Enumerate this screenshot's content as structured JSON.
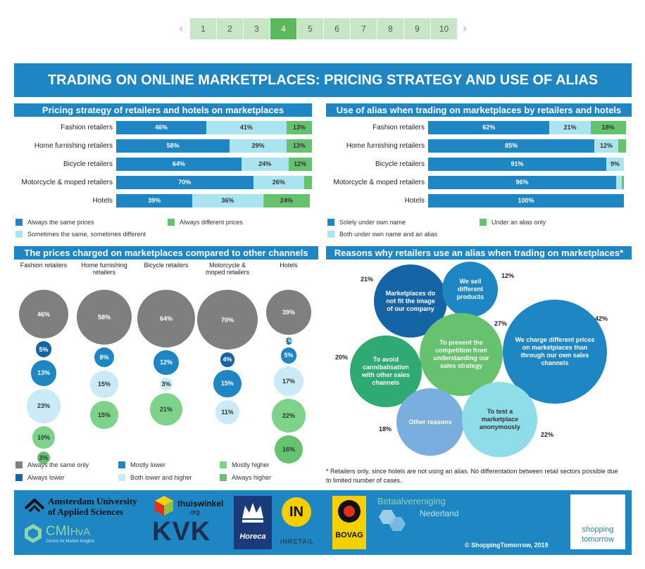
{
  "pagination": {
    "prev": "‹",
    "next": "›",
    "pages": [
      "1",
      "2",
      "3",
      "4",
      "5",
      "6",
      "7",
      "8",
      "9",
      "10"
    ],
    "active": "4"
  },
  "title": "TRADING ON ONLINE MARKETPLACES: PRICING STRATEGY AND USE OF ALIAS",
  "colors": {
    "blue": "#1f86c4",
    "light_blue": "#a9e4f0",
    "green": "#66c26f",
    "grey": "#7f7f7f",
    "dark_blue": "#1565a6",
    "light_green": "#7ed38a"
  },
  "chart_data": [
    {
      "type": "bar",
      "orientation": "horizontal-stacked",
      "title": "Pricing strategy of retailers and hotels on marketplaces",
      "categories": [
        "Fashion retailers",
        "Home furnishing retailers",
        "Bicycle retailers",
        "Motorcycle & moped retailers",
        "Hotels"
      ],
      "series": [
        {
          "name": "Always the same prices",
          "values": [
            46,
            58,
            64,
            70,
            39
          ],
          "labels": [
            "46%",
            "58%",
            "64%",
            "70%",
            "39%"
          ]
        },
        {
          "name": "Sometimes the same, sometimes different",
          "values": [
            41,
            29,
            24,
            26,
            36
          ],
          "labels": [
            "41%",
            "29%",
            "24%",
            "26%",
            "36%"
          ]
        },
        {
          "name": "Always different prices",
          "values": [
            13,
            13,
            12,
            4,
            24
          ],
          "labels": [
            "13%",
            "13%",
            "12%",
            "",
            "24%"
          ]
        }
      ],
      "legend": [
        "Always the same prices",
        "Always different prices",
        "Sometimes the same, sometimes different"
      ]
    },
    {
      "type": "bar",
      "orientation": "horizontal-stacked",
      "title": "Use of alias when trading on marketplaces by retailers and hotels",
      "categories": [
        "Fashion retailers",
        "Home furnishing retailers",
        "Bicycle retailers",
        "Motorcycle & moped retailers",
        "Hotels"
      ],
      "series": [
        {
          "name": "Solely under own name",
          "values": [
            62,
            85,
            91,
            96,
            100
          ],
          "labels": [
            "62%",
            "85%",
            "91%",
            "96%",
            "100%"
          ]
        },
        {
          "name": "Both under own name and an alias",
          "values": [
            21,
            12,
            9,
            3,
            0
          ],
          "labels": [
            "21%",
            "12%",
            "9%",
            "",
            ""
          ]
        },
        {
          "name": "Under an alias only",
          "values": [
            18,
            4,
            0,
            1,
            0
          ],
          "labels": [
            "18%",
            "",
            "",
            "",
            ""
          ]
        }
      ],
      "legend": [
        "Solely under own name",
        "Under an alias only",
        "Both under own name and an alias"
      ]
    },
    {
      "type": "scatter",
      "subtype": "bubble-columns",
      "title": "The prices charged on marketplaces compared to other channels",
      "categories": [
        "Fashion retailers",
        "Home furnishing retailers",
        "Bicycle retailers",
        "Motorcycle & moped retailers",
        "Hotels"
      ],
      "category_labels": [
        [
          "Fashion retailers"
        ],
        [
          "Home furnishing",
          "retailers"
        ],
        [
          "Bicycle retailers"
        ],
        [
          "Motorcycle &",
          "moped retailers"
        ],
        [
          "Hotels"
        ]
      ],
      "series": [
        {
          "name": "Always the same only",
          "values": [
            46,
            58,
            64,
            70,
            39
          ],
          "labels": [
            "46%",
            "58%",
            "64%",
            "70%",
            "39%"
          ]
        },
        {
          "name": "Always lower",
          "values": [
            5,
            0,
            0,
            4,
            1
          ],
          "labels": [
            "5%",
            "",
            "",
            "4%",
            "1%"
          ]
        },
        {
          "name": "Mostly lower",
          "values": [
            13,
            8,
            12,
            15,
            5
          ],
          "labels": [
            "13%",
            "8%",
            "12%",
            "15%",
            "5%"
          ]
        },
        {
          "name": "Both lower and higher",
          "values": [
            23,
            15,
            3,
            11,
            17
          ],
          "labels": [
            "23%",
            "15%",
            "3%",
            "11%",
            "17%"
          ]
        },
        {
          "name": "Mostly higher",
          "values": [
            10,
            15,
            21,
            0,
            22
          ],
          "labels": [
            "10%",
            "15%",
            "21%",
            "",
            "22%"
          ]
        },
        {
          "name": "Always higher",
          "values": [
            3,
            0,
            0,
            0,
            16
          ],
          "labels": [
            "3%",
            "",
            "",
            "",
            "16%"
          ]
        }
      ],
      "legend": [
        "Always the same only",
        "Mostly lower",
        "Mostly higher",
        "Always lower",
        "Both lower and higher",
        "Always higher"
      ]
    },
    {
      "type": "scatter",
      "subtype": "bubble",
      "title": "Reasons why retailers use an alias when trading on marketplaces*",
      "items": [
        {
          "label": "Marketplaces do not fit the image of our company",
          "value": 21,
          "pct": "21%"
        },
        {
          "label": "We sell different products",
          "value": 12,
          "pct": "12%"
        },
        {
          "label": "To prevent the competition from understanding our sales strategy",
          "value": 27,
          "pct": "27%"
        },
        {
          "label": "We charge different prices on marketplaces than through our own sales channels",
          "value": 42,
          "pct": "42%"
        },
        {
          "label": "To avoid cannibalisation with other sales channels",
          "value": 20,
          "pct": "20%"
        },
        {
          "label": "Other reasons",
          "value": 18,
          "pct": "18%"
        },
        {
          "label": "To test a marketplace anonymously",
          "value": 22,
          "pct": "22%"
        }
      ]
    }
  ],
  "footnote": "* Retailers only, since hotels are not using an alias. No differentation between retail sectors possible due to limited number of cases.",
  "footer": {
    "logos": {
      "hva_line1": "Amsterdam University",
      "hva_line2": "of Applied Sciences",
      "cmi": "CMI",
      "cmi_hva": "HvA",
      "cmi_sub": "Centre for Market Insights",
      "thuiswinkel": "thuiswinkel",
      "thuiswinkel_org": ".org",
      "kvk": "KVK",
      "horeca": "Horeca",
      "in": "IN",
      "inretail": "INRETAIL",
      "bovag": "BOVAG",
      "betaal1": "Betaalvereniging",
      "betaal2": "Nederland",
      "st1": "shopping",
      "st2": "tomorrow"
    },
    "copyright": "© ShoppingTomorrow, 2019"
  }
}
